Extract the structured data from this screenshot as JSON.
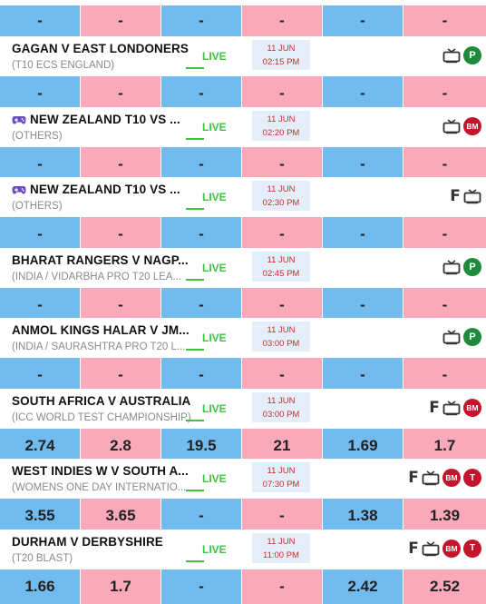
{
  "matches": [
    {
      "title": "GAGAN V EAST LONDONERS",
      "subtitle": "(T10 ECS ENGLAND)",
      "live": "LIVE",
      "date": "11 JUN",
      "time": "02:15 PM",
      "game_icon": false,
      "icons": [
        "tv",
        "p"
      ],
      "odds": [
        "-",
        "-",
        "-",
        "-",
        "-",
        "-"
      ]
    },
    {
      "title": "NEW ZEALAND T10 VS ...",
      "subtitle": "(OTHERS)",
      "live": "LIVE",
      "date": "11 JUN",
      "time": "02:20 PM",
      "game_icon": true,
      "icons": [
        "tv",
        "bm"
      ],
      "odds": [
        "-",
        "-",
        "-",
        "-",
        "-",
        "-"
      ]
    },
    {
      "title": "NEW ZEALAND T10 VS ...",
      "subtitle": "(OTHERS)",
      "live": "LIVE",
      "date": "11 JUN",
      "time": "02:30 PM",
      "game_icon": true,
      "icons": [
        "f",
        "tv"
      ],
      "odds": [
        "-",
        "-",
        "-",
        "-",
        "-",
        "-"
      ]
    },
    {
      "title": "BHARAT RANGERS V NAGP...",
      "subtitle": "(INDIA / VIDARBHA PRO T20 LEA...",
      "live": "LIVE",
      "date": "11 JUN",
      "time": "02:45 PM",
      "game_icon": false,
      "icons": [
        "tv",
        "p"
      ],
      "odds": [
        "-",
        "-",
        "-",
        "-",
        "-",
        "-"
      ]
    },
    {
      "title": "ANMOL KINGS HALAR V JM...",
      "subtitle": "(INDIA / SAURASHTRA PRO T20 L...",
      "live": "LIVE",
      "date": "11 JUN",
      "time": "03:00 PM",
      "game_icon": false,
      "icons": [
        "tv",
        "p"
      ],
      "odds": [
        "-",
        "-",
        "-",
        "-",
        "-",
        "-"
      ]
    },
    {
      "title": "SOUTH AFRICA V AUSTRALIA",
      "subtitle": "(ICC WORLD TEST CHAMPIONSHIP)",
      "live": "LIVE",
      "date": "11 JUN",
      "time": "03:00 PM",
      "game_icon": false,
      "icons": [
        "f",
        "tv",
        "bm"
      ],
      "odds": [
        "2.74",
        "2.8",
        "19.5",
        "21",
        "1.69",
        "1.7"
      ]
    },
    {
      "title": "WEST INDIES W V SOUTH A...",
      "subtitle": "(WOMENS ONE DAY INTERNATIO...",
      "live": "LIVE",
      "date": "11 JUN",
      "time": "07:30 PM",
      "game_icon": false,
      "icons": [
        "f",
        "tv",
        "bm",
        "t"
      ],
      "odds": [
        "3.55",
        "3.65",
        "-",
        "-",
        "1.38",
        "1.39"
      ]
    },
    {
      "title": "DURHAM V DERBYSHIRE",
      "subtitle": "(T20 BLAST)",
      "live": "LIVE",
      "date": "11 JUN",
      "time": "11:00 PM",
      "game_icon": false,
      "icons": [
        "f",
        "tv",
        "bm",
        "t"
      ],
      "odds": [
        "1.66",
        "1.7",
        "-",
        "-",
        "2.42",
        "2.52"
      ]
    }
  ],
  "top_odds": [
    "-",
    "-",
    "-",
    "-",
    "-",
    "-"
  ],
  "badges": {
    "p": "P",
    "bm": "BM",
    "t": "T",
    "f": "F"
  },
  "colors": {
    "back": "#72bbef",
    "lay": "#faa9ba",
    "live": "#3ec342",
    "date_text": "#c52f2f",
    "date_bg": "#e3eef9"
  }
}
